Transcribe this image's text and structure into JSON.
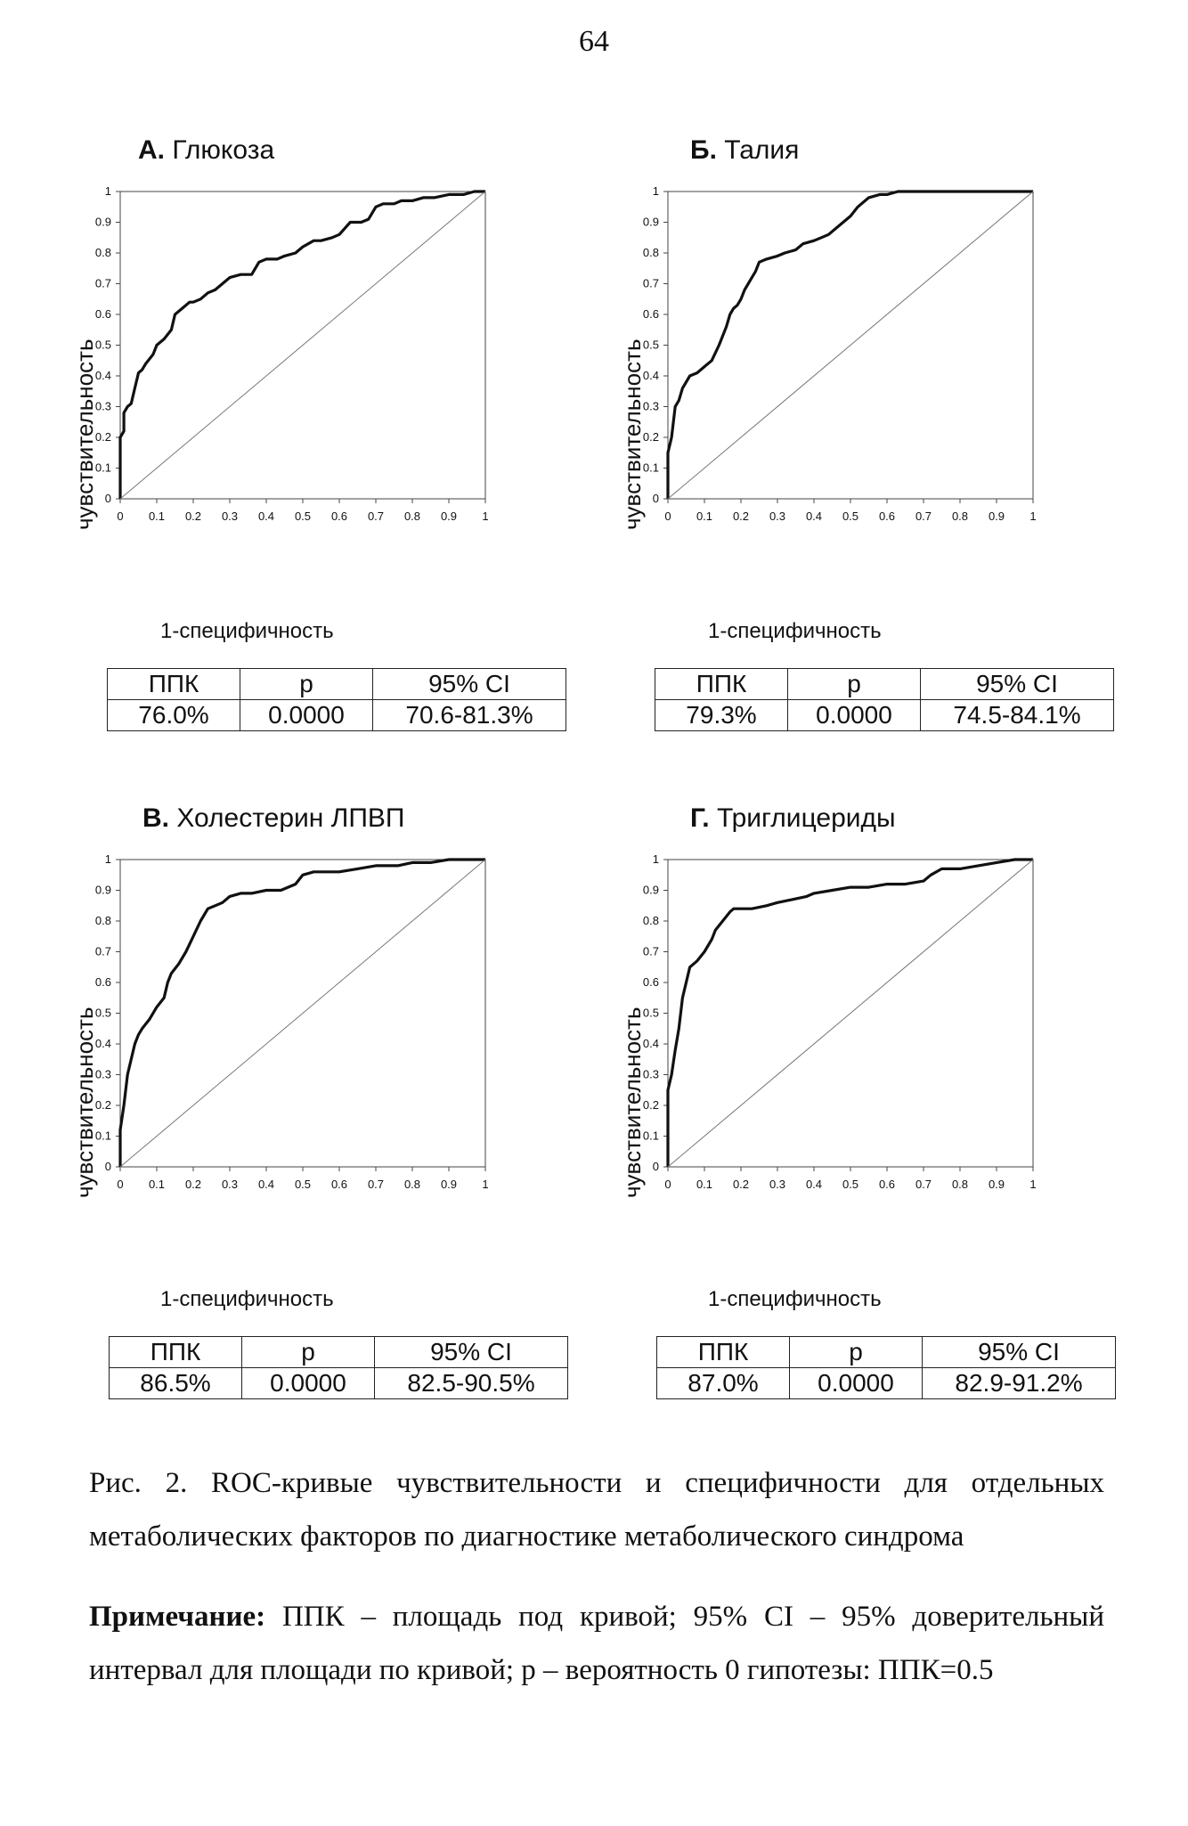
{
  "page_number": "64",
  "xlabel": "1-специфичность",
  "ylabel": "чувствительность",
  "table_headers": [
    "ППК",
    "p",
    "95% CI"
  ],
  "caption": "Рис. 2. ROC-кривые чувствительности и специфичности для отдельных метаболических факторов по диагностике метаболического синдрома",
  "note_label": "Примечание:",
  "note_text": " ППК – площадь под кривой; 95% CI – 95% доверительный интервал для площади по кривой; p – вероятность 0 гипотезы: ППК=0.5",
  "chart_data": [
    {
      "type": "line",
      "title_letter": "А.",
      "title": "Глюкоза",
      "xlabel": "1-специфичность",
      "ylabel": "чувствительность",
      "xlim": [
        0,
        1
      ],
      "ylim": [
        0,
        1
      ],
      "ticks": [
        "0",
        "0.1",
        "0.2",
        "0.3",
        "0.4",
        "0.5",
        "0.6",
        "0.7",
        "0.8",
        "0.9",
        "1"
      ],
      "grid": false,
      "series": [
        {
          "values_x": [
            0,
            0,
            0.01,
            0.01,
            0.02,
            0.03,
            0.04,
            0.05,
            0.06,
            0.07,
            0.09,
            0.1,
            0.12,
            0.14,
            0.15,
            0.17,
            0.19,
            0.2,
            0.22,
            0.24,
            0.26,
            0.28,
            0.3,
            0.33,
            0.36,
            0.38,
            0.4,
            0.43,
            0.45,
            0.48,
            0.5,
            0.53,
            0.55,
            0.58,
            0.6,
            0.63,
            0.66,
            0.68,
            0.7,
            0.72,
            0.75,
            0.77,
            0.8,
            0.83,
            0.86,
            0.9,
            0.94,
            0.97,
            1
          ],
          "values_y": [
            0,
            0.2,
            0.22,
            0.28,
            0.3,
            0.31,
            0.36,
            0.41,
            0.42,
            0.44,
            0.47,
            0.5,
            0.52,
            0.55,
            0.6,
            0.62,
            0.64,
            0.64,
            0.65,
            0.67,
            0.68,
            0.7,
            0.72,
            0.73,
            0.73,
            0.77,
            0.78,
            0.78,
            0.79,
            0.8,
            0.82,
            0.84,
            0.84,
            0.85,
            0.86,
            0.9,
            0.9,
            0.91,
            0.95,
            0.96,
            0.96,
            0.97,
            0.97,
            0.98,
            0.98,
            0.99,
            0.99,
            1,
            1
          ]
        },
        {
          "reference": true,
          "values_x": [
            0,
            1
          ],
          "values_y": [
            0,
            1
          ]
        }
      ],
      "stats": {
        "auc": "76.0%",
        "p": "0.0000",
        "ci": "70.6-81.3%"
      }
    },
    {
      "type": "line",
      "title_letter": "Б.",
      "title": "Талия",
      "xlabel": "1-специфичность",
      "ylabel": "чувствительность",
      "xlim": [
        0,
        1
      ],
      "ylim": [
        0,
        1
      ],
      "ticks": [
        "0",
        "0.1",
        "0.2",
        "0.3",
        "0.4",
        "0.5",
        "0.6",
        "0.7",
        "0.8",
        "0.9",
        "1"
      ],
      "grid": false,
      "series": [
        {
          "values_x": [
            0,
            0,
            0.01,
            0.02,
            0.03,
            0.04,
            0.05,
            0.06,
            0.08,
            0.1,
            0.12,
            0.14,
            0.16,
            0.17,
            0.18,
            0.19,
            0.2,
            0.21,
            0.22,
            0.23,
            0.24,
            0.25,
            0.27,
            0.3,
            0.32,
            0.35,
            0.37,
            0.4,
            0.42,
            0.44,
            0.46,
            0.48,
            0.5,
            0.52,
            0.55,
            0.58,
            0.6,
            0.63,
            0.66,
            0.7,
            0.75,
            0.8,
            0.9,
            1
          ],
          "values_y": [
            0,
            0.15,
            0.2,
            0.3,
            0.32,
            0.36,
            0.38,
            0.4,
            0.41,
            0.43,
            0.45,
            0.5,
            0.56,
            0.6,
            0.62,
            0.63,
            0.65,
            0.68,
            0.7,
            0.72,
            0.74,
            0.77,
            0.78,
            0.79,
            0.8,
            0.81,
            0.83,
            0.84,
            0.85,
            0.86,
            0.88,
            0.9,
            0.92,
            0.95,
            0.98,
            0.99,
            0.99,
            1,
            1,
            1,
            1,
            1,
            1,
            1
          ]
        },
        {
          "reference": true,
          "values_x": [
            0,
            1
          ],
          "values_y": [
            0,
            1
          ]
        }
      ],
      "stats": {
        "auc": "79.3%",
        "p": "0.0000",
        "ci": "74.5-84.1%"
      }
    },
    {
      "type": "line",
      "title_letter": "В.",
      "title": "Холестерин ЛПВП",
      "xlabel": "1-специфичность",
      "ylabel": "чувствительность",
      "xlim": [
        0,
        1
      ],
      "ylim": [
        0,
        1
      ],
      "ticks": [
        "0",
        "0.1",
        "0.2",
        "0.3",
        "0.4",
        "0.5",
        "0.6",
        "0.7",
        "0.8",
        "0.9",
        "1"
      ],
      "grid": false,
      "series": [
        {
          "values_x": [
            0,
            0,
            0.01,
            0.02,
            0.03,
            0.04,
            0.05,
            0.06,
            0.08,
            0.1,
            0.12,
            0.13,
            0.14,
            0.16,
            0.18,
            0.2,
            0.22,
            0.24,
            0.26,
            0.28,
            0.3,
            0.33,
            0.36,
            0.4,
            0.44,
            0.48,
            0.5,
            0.53,
            0.56,
            0.6,
            0.65,
            0.7,
            0.76,
            0.8,
            0.85,
            0.9,
            0.95,
            1
          ],
          "values_y": [
            0,
            0.12,
            0.2,
            0.3,
            0.35,
            0.4,
            0.43,
            0.45,
            0.48,
            0.52,
            0.55,
            0.6,
            0.63,
            0.66,
            0.7,
            0.75,
            0.8,
            0.84,
            0.85,
            0.86,
            0.88,
            0.89,
            0.89,
            0.9,
            0.9,
            0.92,
            0.95,
            0.96,
            0.96,
            0.96,
            0.97,
            0.98,
            0.98,
            0.99,
            0.99,
            1,
            1,
            1
          ]
        },
        {
          "reference": true,
          "values_x": [
            0,
            1
          ],
          "values_y": [
            0,
            1
          ]
        }
      ],
      "stats": {
        "auc": "86.5%",
        "p": "0.0000",
        "ci": "82.5-90.5%"
      }
    },
    {
      "type": "line",
      "title_letter": "Г.",
      "title": "Триглицериды",
      "xlabel": "1-специфичность",
      "ylabel": "чувствительность",
      "xlim": [
        0,
        1
      ],
      "ylim": [
        0,
        1
      ],
      "ticks": [
        "0",
        "0.1",
        "0.2",
        "0.3",
        "0.4",
        "0.5",
        "0.6",
        "0.7",
        "0.8",
        "0.9",
        "1"
      ],
      "grid": false,
      "series": [
        {
          "values_x": [
            0,
            0,
            0.01,
            0.02,
            0.03,
            0.04,
            0.05,
            0.06,
            0.07,
            0.08,
            0.1,
            0.12,
            0.13,
            0.15,
            0.17,
            0.18,
            0.2,
            0.23,
            0.27,
            0.3,
            0.34,
            0.38,
            0.4,
            0.45,
            0.5,
            0.55,
            0.6,
            0.65,
            0.7,
            0.72,
            0.75,
            0.8,
            0.85,
            0.9,
            0.95,
            1
          ],
          "values_y": [
            0,
            0.25,
            0.3,
            0.38,
            0.45,
            0.55,
            0.6,
            0.65,
            0.66,
            0.67,
            0.7,
            0.74,
            0.77,
            0.8,
            0.83,
            0.84,
            0.84,
            0.84,
            0.85,
            0.86,
            0.87,
            0.88,
            0.89,
            0.9,
            0.91,
            0.91,
            0.92,
            0.92,
            0.93,
            0.95,
            0.97,
            0.97,
            0.98,
            0.99,
            1,
            1
          ]
        },
        {
          "reference": true,
          "values_x": [
            0,
            1
          ],
          "values_y": [
            0,
            1
          ]
        }
      ],
      "stats": {
        "auc": "87.0%",
        "p": "0.0000",
        "ci": "82.9-91.2%"
      }
    }
  ]
}
